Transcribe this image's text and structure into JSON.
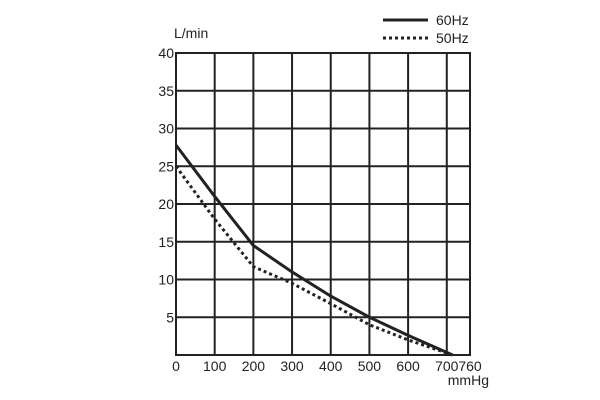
{
  "chart_data": {
    "type": "line",
    "title": "",
    "xlabel": "mmHg",
    "ylabel": "L/min",
    "xlim": [
      0,
      760
    ],
    "ylim": [
      0,
      40
    ],
    "grid": true,
    "legend_position": "top-right",
    "x_ticks": [
      0,
      100,
      200,
      300,
      400,
      500,
      600,
      700,
      760
    ],
    "y_ticks": [
      5,
      10,
      15,
      20,
      25,
      30,
      35,
      40
    ],
    "x_tick_labels": [
      "0",
      "100",
      "200",
      "300",
      "400",
      "500",
      "600",
      "700",
      "760"
    ],
    "y_tick_labels": [
      "5",
      "10",
      "15",
      "20",
      "25",
      "30",
      "35",
      "40"
    ],
    "series": [
      {
        "name": "60Hz",
        "style": "solid",
        "color": "#222222",
        "x": [
          0,
          100,
          200,
          300,
          400,
          500,
          600,
          715
        ],
        "y": [
          27.8,
          21,
          14.5,
          11,
          7.8,
          5,
          2.6,
          0
        ]
      },
      {
        "name": "50Hz",
        "style": "dotted",
        "color": "#222222",
        "x": [
          0,
          100,
          200,
          300,
          400,
          500,
          600,
          715
        ],
        "y": [
          25,
          18,
          11.7,
          9.5,
          6.8,
          4,
          2,
          0
        ]
      }
    ]
  }
}
